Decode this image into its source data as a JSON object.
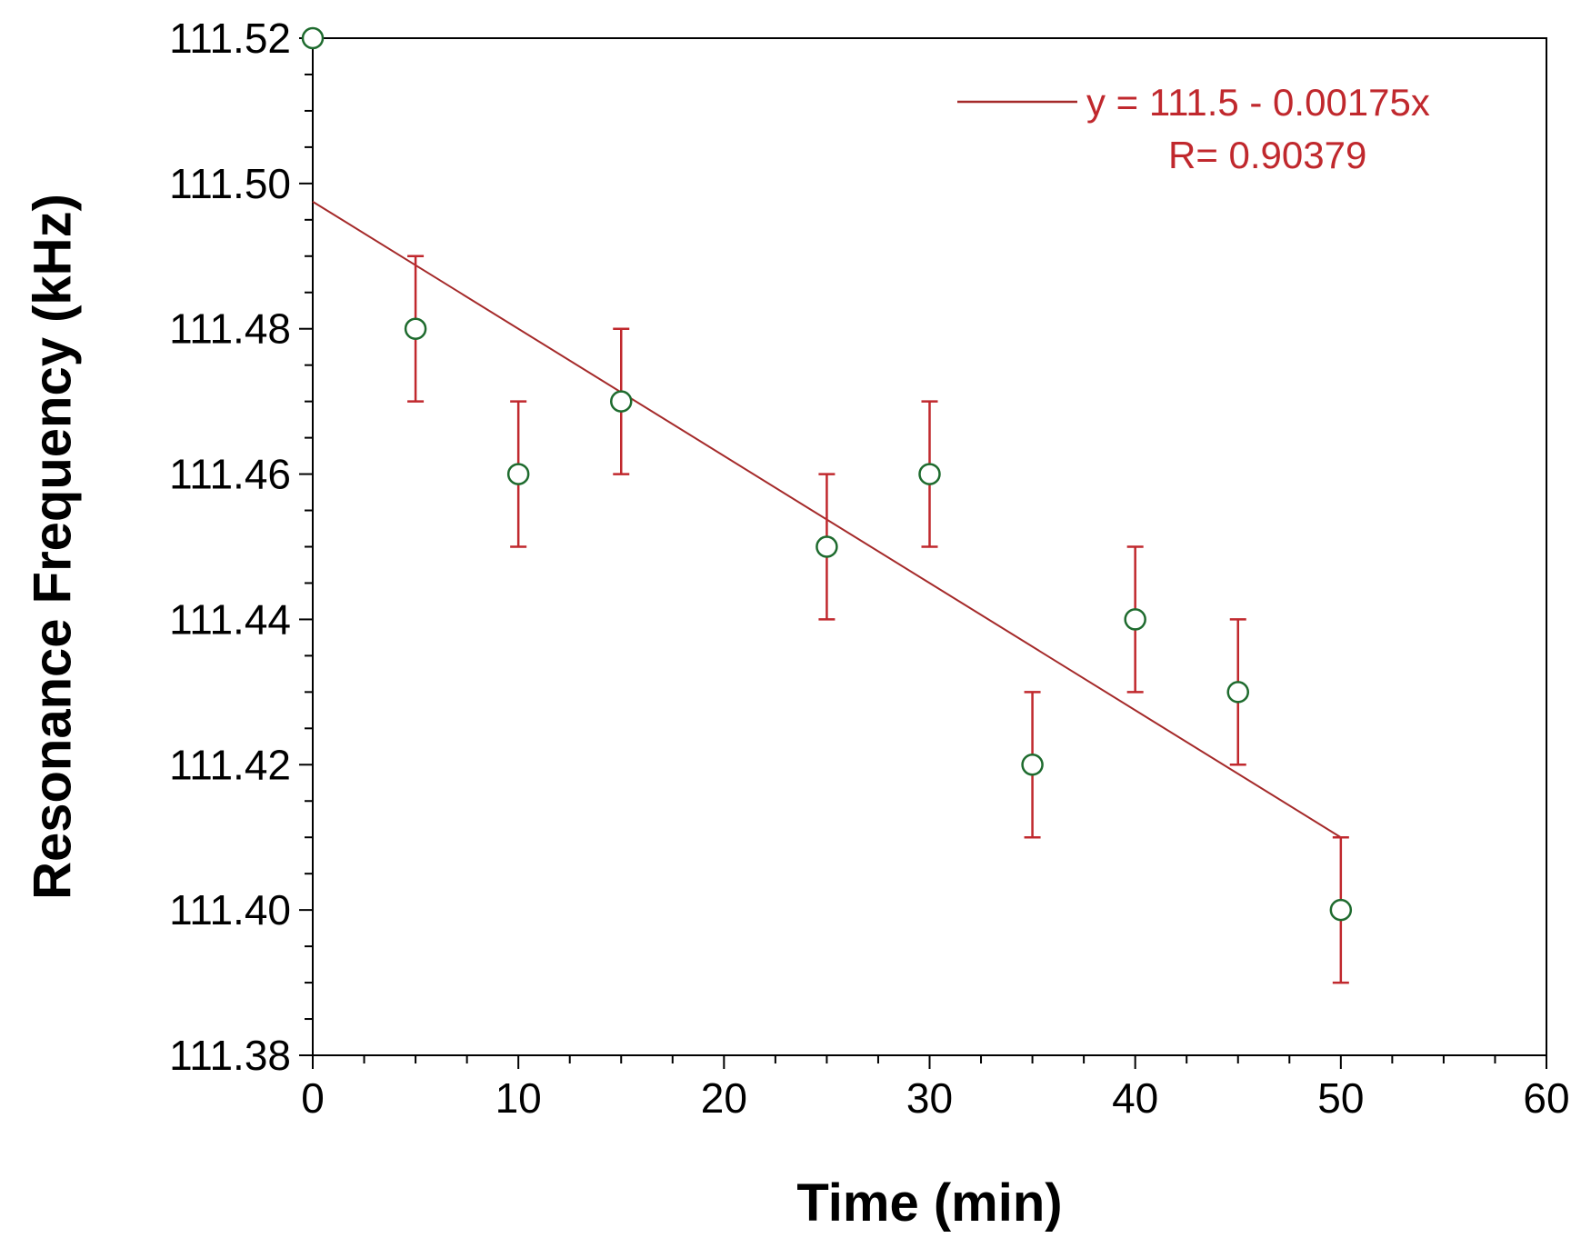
{
  "chart_data": {
    "type": "scatter",
    "title": "",
    "xlabel": "Time (min)",
    "ylabel": "Resonance Frequency (kHz)",
    "xlim": [
      0,
      60
    ],
    "ylim": [
      111.38,
      111.52
    ],
    "x_ticks": [
      "0",
      "10",
      "20",
      "30",
      "40",
      "50",
      "60"
    ],
    "x_tick_values": [
      0,
      10,
      20,
      30,
      40,
      50,
      60
    ],
    "y_ticks": [
      "111.38",
      "111.40",
      "111.42",
      "111.44",
      "111.46",
      "111.48",
      "111.50",
      "111.52"
    ],
    "y_tick_values": [
      111.38,
      111.4,
      111.42,
      111.44,
      111.46,
      111.48,
      111.5,
      111.52
    ],
    "grid": false,
    "series": [
      {
        "name": "Resonance frequency",
        "marker": "open-circle",
        "x": [
          0,
          5,
          10,
          15,
          25,
          30,
          35,
          40,
          45,
          50
        ],
        "values": [
          111.52,
          111.48,
          111.46,
          111.47,
          111.45,
          111.46,
          111.42,
          111.44,
          111.43,
          111.4
        ],
        "error_low": [
          null,
          111.47,
          111.45,
          111.46,
          111.44,
          111.45,
          111.41,
          111.43,
          111.42,
          111.39
        ],
        "error_high": [
          null,
          111.49,
          111.47,
          111.48,
          111.46,
          111.47,
          111.43,
          111.45,
          111.44,
          111.41
        ]
      }
    ],
    "fit": {
      "type": "linear",
      "intercept": 111.4975,
      "slope": -0.00175,
      "x_range": [
        0,
        50
      ]
    },
    "legend": {
      "position": "top-right",
      "equation": "y =  111.5 - 0.00175x",
      "r_value": "R= 0.90379"
    },
    "colors": {
      "axis": "#000000",
      "marker": "#1e6b2e",
      "error_bar": "#c0282d",
      "fit_line": "#a52a2a",
      "legend_text": "#c0282d"
    }
  }
}
